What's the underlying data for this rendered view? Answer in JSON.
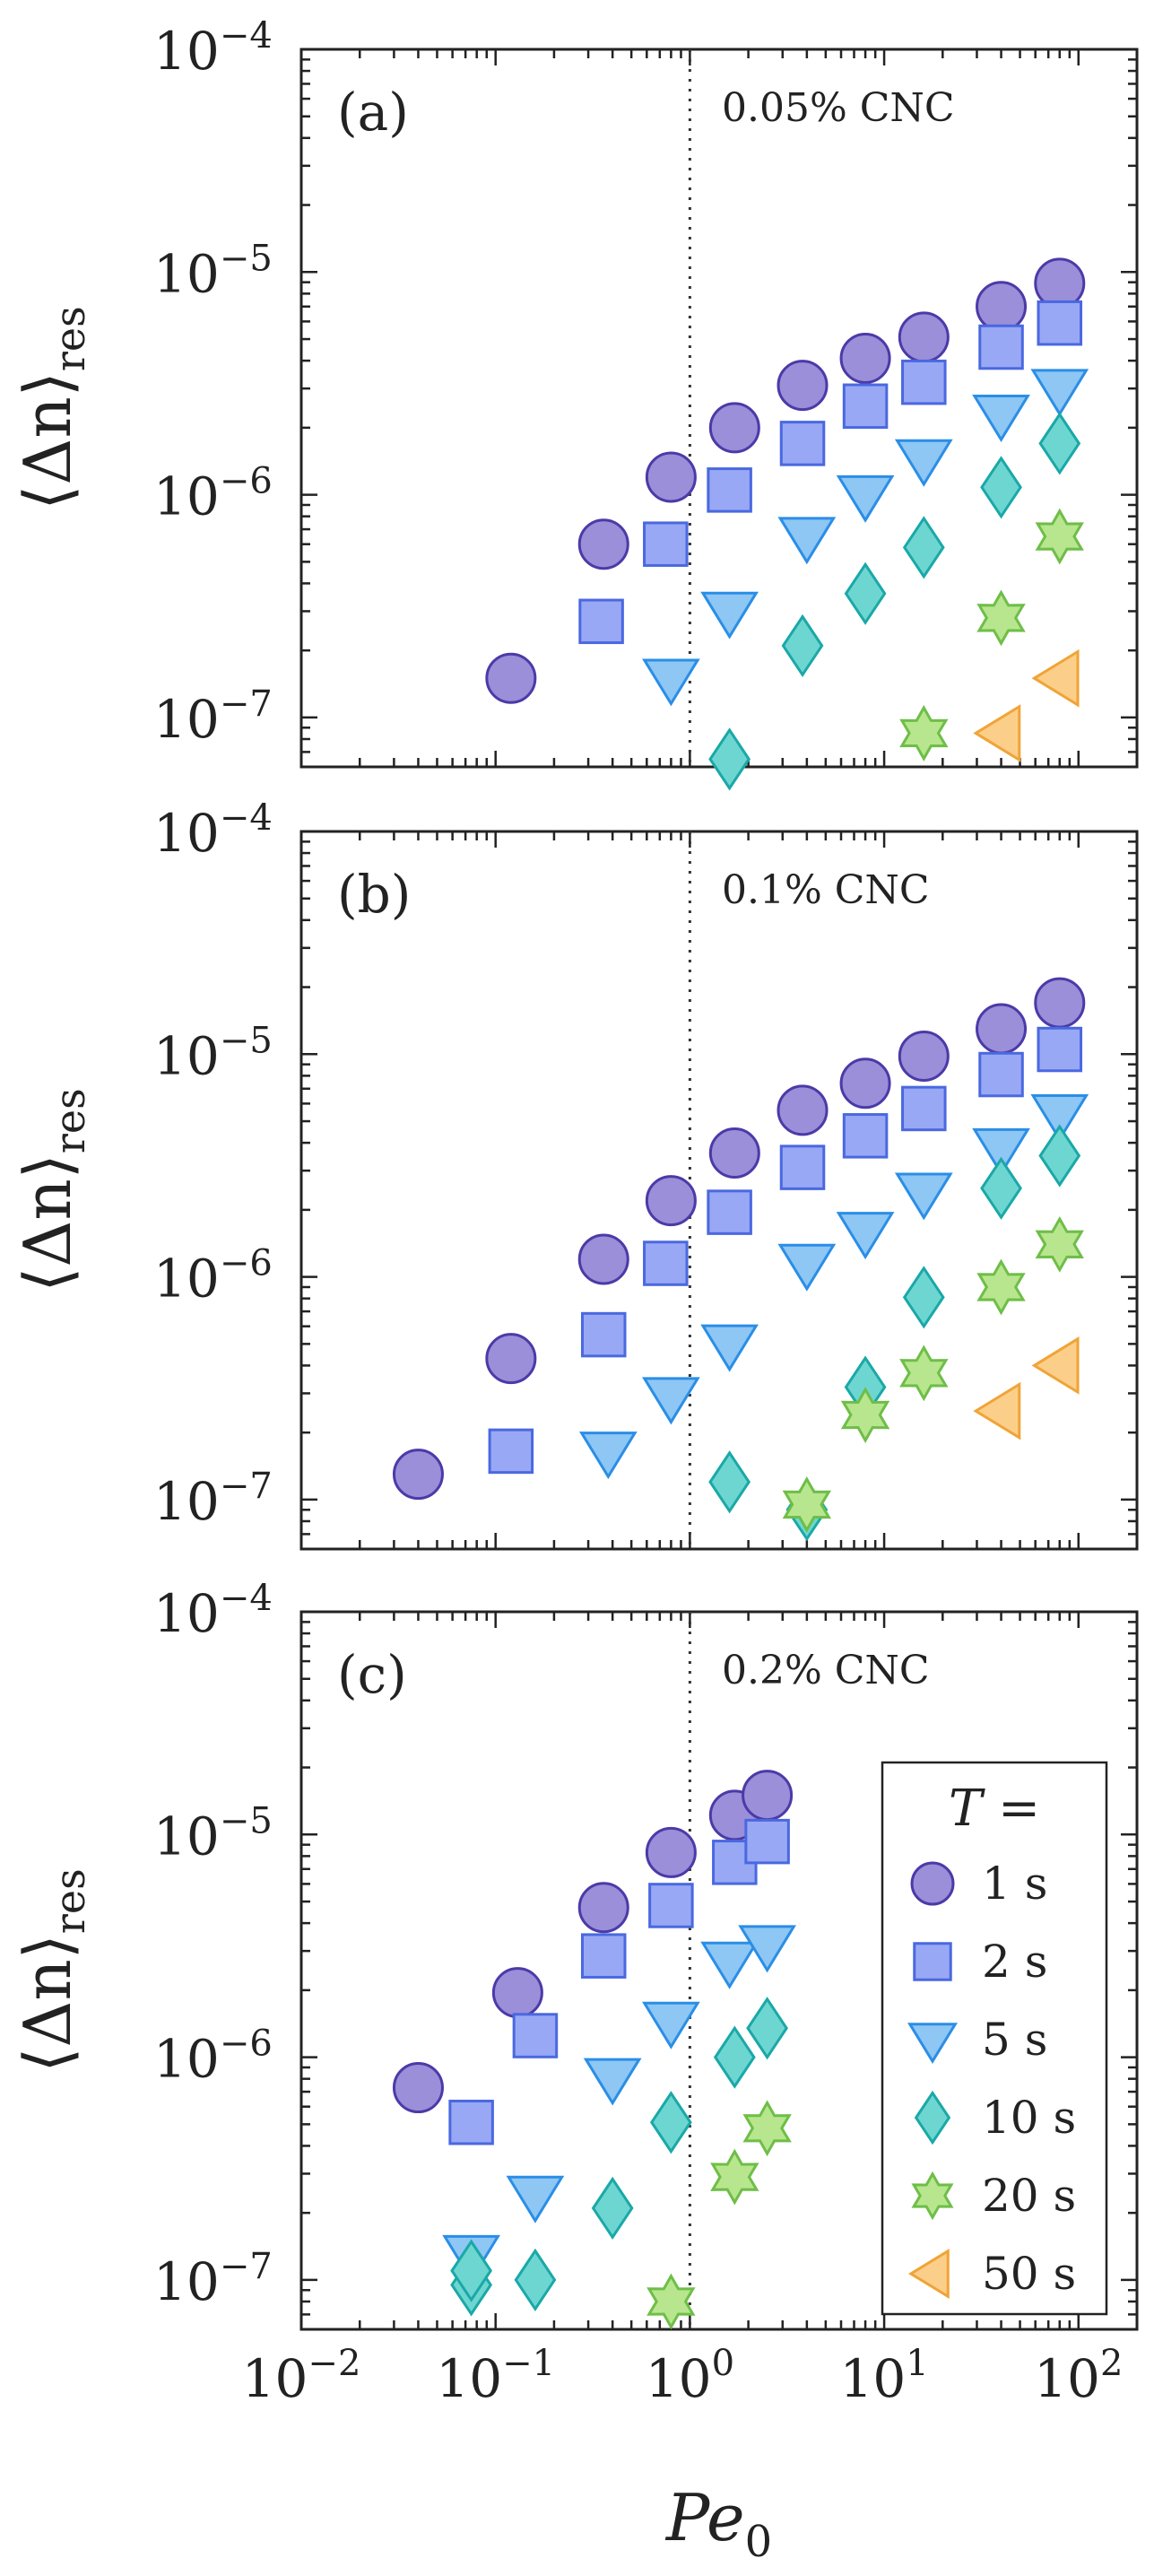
{
  "colors": {
    "1 s": {
      "fill": "#9a8fd8",
      "stroke": "#4b3aa8"
    },
    "2 s": {
      "fill": "#98a8f4",
      "stroke": "#4a68e0"
    },
    "5 s": {
      "fill": "#8ec6f4",
      "stroke": "#2a8ee6"
    },
    "10 s": {
      "fill": "#6ed6d0",
      "stroke": "#1aa8a8"
    },
    "20 s": {
      "fill": "#b8e68e",
      "stroke": "#6ebe48"
    },
    "50 s": {
      "fill": "#fbce8a",
      "stroke": "#f0a437"
    }
  },
  "axes": {
    "xlabel": "Pe",
    "xlabel_sub": "0",
    "ylabel_main": "⟨Δn⟩",
    "ylabel_sub": "res",
    "x_ticks": [
      {
        "base": "10",
        "exp": "−2"
      },
      {
        "base": "10",
        "exp": "−1"
      },
      {
        "base": "10",
        "exp": "0"
      },
      {
        "base": "10",
        "exp": "1"
      },
      {
        "base": "10",
        "exp": "2"
      }
    ],
    "y_ticks": [
      {
        "base": "10",
        "exp": "−7"
      },
      {
        "base": "10",
        "exp": "−6"
      },
      {
        "base": "10",
        "exp": "−5"
      },
      {
        "base": "10",
        "exp": "−4"
      }
    ]
  },
  "legend": {
    "title": "T =",
    "entries": [
      "1 s",
      "2 s",
      "5 s",
      "10 s",
      "20 s",
      "50 s"
    ],
    "placement": "lower-right of panel (c)"
  },
  "chart_data": [
    {
      "type": "scatter",
      "panel": "(a)",
      "concentration": "0.05% CNC",
      "x_scale": "log",
      "y_scale": "log",
      "xlim": [
        0.01,
        200
      ],
      "ylim": [
        6e-08,
        0.0001
      ],
      "reference_line": {
        "x": 1,
        "style": "dotted"
      },
      "series": [
        {
          "name": "1 s",
          "marker": "circle",
          "x": [
            0.12,
            0.36,
            0.8,
            1.7,
            3.8,
            8,
            16,
            40,
            80
          ],
          "y": [
            1.5e-07,
            6e-07,
            1.2e-06,
            2e-06,
            3.1e-06,
            4.1e-06,
            5.1e-06,
            7e-06,
            8.9e-06
          ]
        },
        {
          "name": "2 s",
          "marker": "square",
          "x": [
            0.35,
            0.75,
            1.6,
            3.8,
            8,
            16,
            40,
            80
          ],
          "y": [
            2.7e-07,
            6e-07,
            1.05e-06,
            1.7e-06,
            2.5e-06,
            3.2e-06,
            4.6e-06,
            5.9e-06
          ]
        },
        {
          "name": "5 s",
          "marker": "triangle-down",
          "x": [
            0.8,
            1.6,
            4,
            8,
            16,
            40,
            80
          ],
          "y": [
            1.5e-07,
            3e-07,
            6.5e-07,
            1e-06,
            1.45e-06,
            2.3e-06,
            3e-06
          ]
        },
        {
          "name": "10 s",
          "marker": "diamond",
          "x": [
            1.6,
            3.8,
            8,
            16,
            40,
            80
          ],
          "y": [
            6.5e-08,
            2.1e-07,
            3.6e-07,
            5.8e-07,
            1.08e-06,
            1.7e-06
          ]
        },
        {
          "name": "20 s",
          "marker": "hexagram",
          "x": [
            16,
            40,
            80
          ],
          "y": [
            8.5e-08,
            2.8e-07,
            6.5e-07
          ]
        },
        {
          "name": "50 s",
          "marker": "triangle-left",
          "x": [
            40,
            80
          ],
          "y": [
            8.5e-08,
            1.5e-07
          ]
        }
      ]
    },
    {
      "type": "scatter",
      "panel": "(b)",
      "concentration": "0.1% CNC",
      "x_scale": "log",
      "y_scale": "log",
      "xlim": [
        0.01,
        200
      ],
      "ylim": [
        6e-08,
        0.0001
      ],
      "reference_line": {
        "x": 1,
        "style": "dotted"
      },
      "series": [
        {
          "name": "1 s",
          "marker": "circle",
          "x": [
            0.04,
            0.12,
            0.36,
            0.8,
            1.7,
            3.8,
            8,
            16,
            40,
            80
          ],
          "y": [
            1.3e-07,
            4.3e-07,
            1.2e-06,
            2.2e-06,
            3.6e-06,
            5.6e-06,
            7.4e-06,
            9.8e-06,
            1.3e-05,
            1.7e-05
          ]
        },
        {
          "name": "2 s",
          "marker": "square",
          "x": [
            0.12,
            0.36,
            0.75,
            1.6,
            3.8,
            8,
            16,
            40,
            80
          ],
          "y": [
            1.65e-07,
            5.5e-07,
            1.15e-06,
            1.95e-06,
            3.1e-06,
            4.3e-06,
            5.7e-06,
            8.1e-06,
            1.05e-05
          ]
        },
        {
          "name": "5 s",
          "marker": "triangle-down",
          "x": [
            0.38,
            0.8,
            1.6,
            4,
            8,
            16,
            40,
            80
          ],
          "y": [
            1.65e-07,
            2.9e-07,
            5e-07,
            1.15e-06,
            1.6e-06,
            2.4e-06,
            3.8e-06,
            5.4e-06
          ]
        },
        {
          "name": "10 s",
          "marker": "diamond",
          "x": [
            1.6,
            4,
            8,
            16,
            40,
            80
          ],
          "y": [
            1.2e-07,
            9e-08,
            3.2e-07,
            8.1e-07,
            2.5e-06,
            3.5e-06
          ]
        },
        {
          "name": "20 s",
          "marker": "hexagram",
          "x": [
            4,
            8,
            16,
            40,
            80
          ],
          "y": [
            9.5e-08,
            2.4e-07,
            3.7e-07,
            9e-07,
            1.4e-06
          ]
        },
        {
          "name": "50 s",
          "marker": "triangle-left",
          "x": [
            40,
            80
          ],
          "y": [
            2.5e-07,
            4e-07
          ]
        }
      ]
    },
    {
      "type": "scatter",
      "panel": "(c)",
      "concentration": "0.2% CNC",
      "x_scale": "log",
      "y_scale": "log",
      "xlim": [
        0.01,
        200
      ],
      "ylim": [
        6e-08,
        0.0001
      ],
      "reference_line": {
        "x": 1,
        "style": "dotted"
      },
      "series": [
        {
          "name": "1 s",
          "marker": "circle",
          "x": [
            0.04,
            0.13,
            0.36,
            0.8,
            1.7,
            2.5
          ],
          "y": [
            7.3e-07,
            1.95e-06,
            4.7e-06,
            8.3e-06,
            1.22e-05,
            1.5e-05
          ]
        },
        {
          "name": "2 s",
          "marker": "square",
          "x": [
            0.075,
            0.16,
            0.36,
            0.8,
            1.7,
            2.5
          ],
          "y": [
            5.1e-07,
            1.25e-06,
            2.85e-06,
            4.8e-06,
            7.5e-06,
            9.3e-06
          ]
        },
        {
          "name": "5 s",
          "marker": "triangle-down",
          "x": [
            0.075,
            0.16,
            0.4,
            0.8,
            1.6,
            2.5
          ],
          "y": [
            1.3e-07,
            2.4e-07,
            8.1e-07,
            1.45e-06,
            2.7e-06,
            3.2e-06
          ]
        },
        {
          "name": "10 s",
          "marker": "diamond",
          "x": [
            0.075,
            0.075,
            0.16,
            0.4,
            0.8,
            1.7,
            2.5
          ],
          "y": [
            9.5e-08,
            1.1e-07,
            1e-07,
            2.1e-07,
            5.1e-07,
            1e-06,
            1.35e-06
          ]
        },
        {
          "name": "20 s",
          "marker": "hexagram",
          "x": [
            0.8,
            1.7,
            2.5
          ],
          "y": [
            8e-08,
            2.9e-07,
            4.8e-07
          ]
        }
      ]
    }
  ]
}
